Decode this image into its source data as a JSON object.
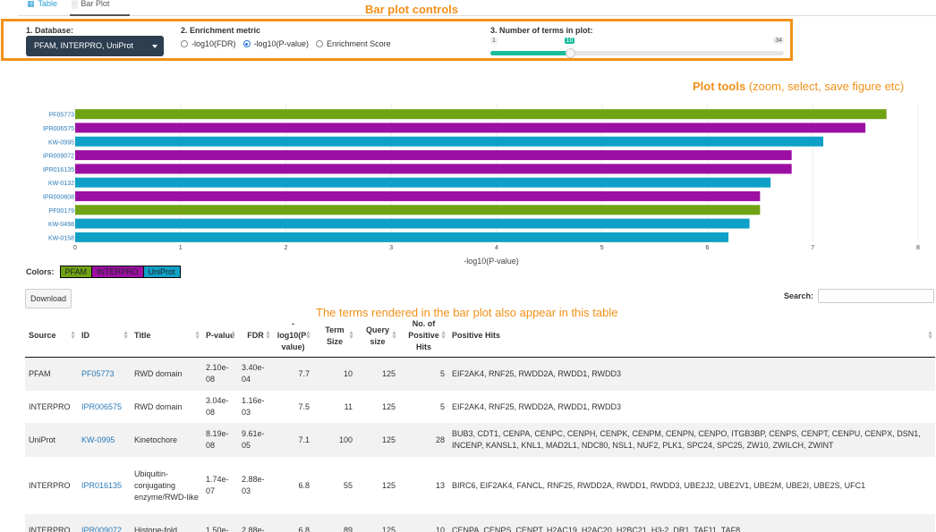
{
  "tabs": [
    {
      "label": "Table",
      "icon": "table-icon"
    },
    {
      "label": "Bar Plot",
      "icon": "bar-chart-icon"
    }
  ],
  "annotations": {
    "controls": "Bar plot controls",
    "tools_bold": "Plot tools",
    "tools_rest": "(zoom, select, save figure etc)",
    "terms": "The terms rendered in the bar plot also appear in this table"
  },
  "controls": {
    "database_label": "1. Database:",
    "database_value": "PFAM, INTERPRO, UniProt",
    "metric_label": "2. Enrichment metric",
    "metric_options": [
      "-log10(FDR)",
      "-log10(P-value)",
      "Enrichment Score"
    ],
    "metric_selected": "-log10(P-value)",
    "terms_label": "3. Number of terms in plot:",
    "slider_min": "1",
    "slider_value": "10",
    "slider_max": "34",
    "slider_fraction": 0.27
  },
  "chart_data": {
    "type": "bar",
    "orientation": "horizontal",
    "categories": [
      "PF05773",
      "IPR006575",
      "KW-0995",
      "IPR009072",
      "IPR016135",
      "KW-0132",
      "IPR000608",
      "PF00179",
      "KW-0498",
      "KW-0158"
    ],
    "values": [
      7.7,
      7.5,
      7.1,
      6.8,
      6.8,
      6.6,
      6.5,
      6.5,
      6.4,
      6.2
    ],
    "sources": [
      "PFAM",
      "INTERPRO",
      "UniProt",
      "INTERPRO",
      "INTERPRO",
      "UniProt",
      "INTERPRO",
      "PFAM",
      "UniProt",
      "UniProt"
    ],
    "xlabel": "-log10(P-value)",
    "xlim": [
      0,
      8
    ],
    "xticks": [
      "0",
      "1",
      "2",
      "3",
      "4",
      "5",
      "6",
      "7",
      "8"
    ],
    "colors": {
      "PFAM": "#6fa314",
      "INTERPRO": "#9c0fa3",
      "UniProt": "#0ea0c6"
    }
  },
  "legend": {
    "label": "Colors:",
    "items": [
      {
        "name": "PFAM",
        "color": "#6fa314"
      },
      {
        "name": "INTERPRO",
        "color": "#9c0fa3"
      },
      {
        "name": "UniProt",
        "color": "#0ea0c6"
      }
    ]
  },
  "table_tools": {
    "download": "Download",
    "search_label": "Search:"
  },
  "table": {
    "headers": [
      "Source",
      "ID",
      "Title",
      "P-value",
      "FDR",
      "-log10(P-value)",
      "Term Size",
      "Query size",
      "No. of Positive Hits",
      "Positive Hits"
    ],
    "rows": [
      {
        "source": "PFAM",
        "id": "PF05773",
        "title": "RWD domain",
        "pvalue": "2.10e-08",
        "fdr": "3.40e-04",
        "logp": "7.7",
        "term_size": "10",
        "query_size": "125",
        "n_hits": "5",
        "hits": "EIF2AK4, RNF25, RWDD2A, RWDD1, RWDD3"
      },
      {
        "source": "INTERPRO",
        "id": "IPR006575",
        "title": "RWD domain",
        "pvalue": "3.04e-08",
        "fdr": "1.16e-03",
        "logp": "7.5",
        "term_size": "11",
        "query_size": "125",
        "n_hits": "5",
        "hits": "EIF2AK4, RNF25, RWDD2A, RWDD1, RWDD3"
      },
      {
        "source": "UniProt",
        "id": "KW-0995",
        "title": "Kinetochore",
        "pvalue": "8.19e-08",
        "fdr": "9.61e-05",
        "logp": "7.1",
        "term_size": "100",
        "query_size": "125",
        "n_hits": "28",
        "hits": "BUB3, CDT1, CENPA, CENPC, CENPH, CENPK, CENPM, CENPN, CENPO, ITGB3BP, CENPS, CENPT, CENPU, CENPX, DSN1, INCENP, KANSL1, KNL1, MAD2L1, NDC80, NSL1, NUF2, PLK1, SPC24, SPC25, ZW10, ZWILCH, ZWINT"
      },
      {
        "source": "INTERPRO",
        "id": "IPR016135",
        "title": "Ubiquitin-conjugating enzyme/RWD-like",
        "pvalue": "1.74e-07",
        "fdr": "2.88e-03",
        "logp": "6.8",
        "term_size": "55",
        "query_size": "125",
        "n_hits": "13",
        "hits": "BIRC6, EIF2AK4, FANCL, RNF25, RWDD2A, RWDD1, RWDD3, UBE2J2, UBE2V1, UBE2M, UBE2I, UBE2S, UFC1"
      },
      {
        "source": "INTERPRO",
        "id": "IPR009072",
        "title": "Histone-fold",
        "pvalue": "1.50e-",
        "fdr": "2.88e-",
        "logp": "6.8",
        "term_size": "89",
        "query_size": "125",
        "n_hits": "10",
        "hits": "CENPA, CENPS, CENPT, H2AC19, H2AC20, H2BC21, H3-2, DR1, TAF11, TAF8"
      }
    ]
  }
}
